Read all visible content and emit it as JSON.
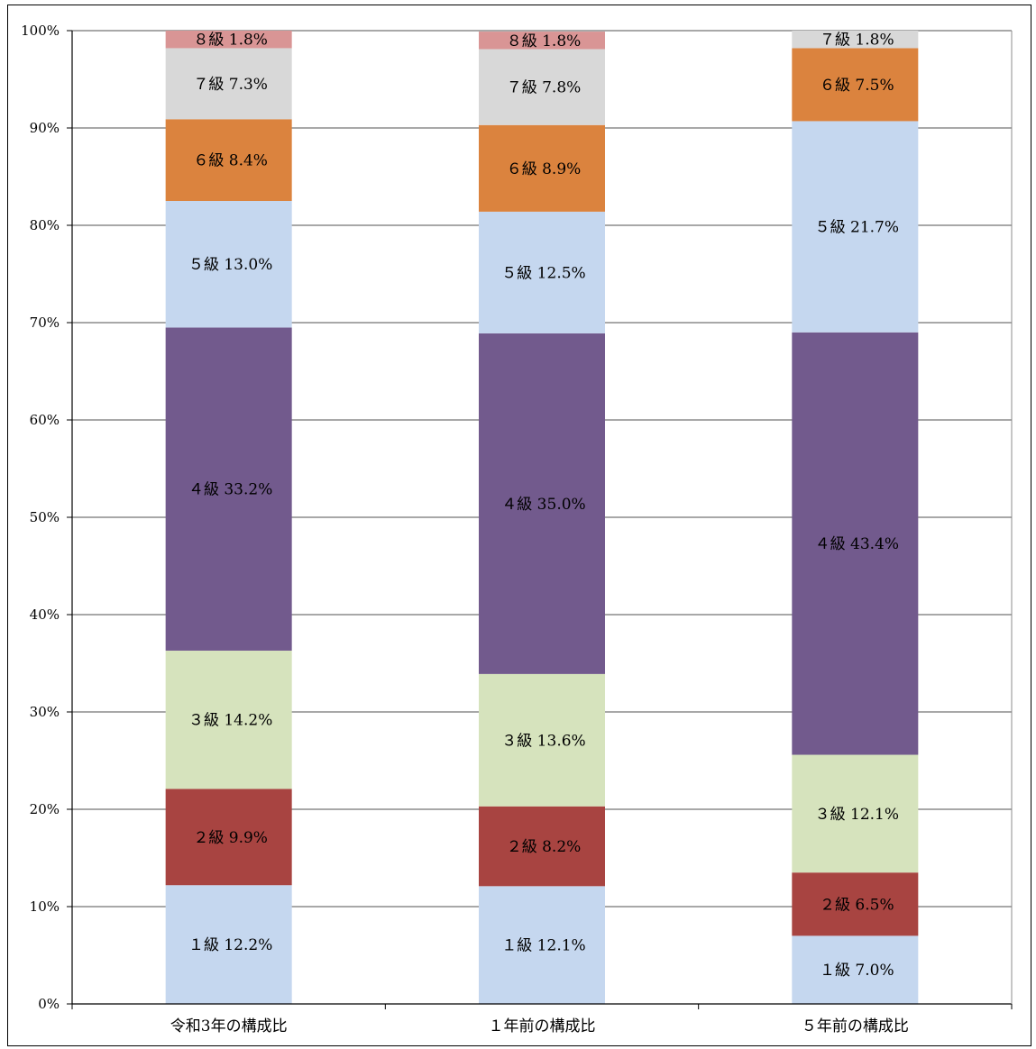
{
  "chart_data": {
    "type": "bar",
    "stacked": true,
    "normalized": true,
    "categories": [
      "令和3年の構成比",
      "１年前の構成比",
      "５年前の構成比"
    ],
    "ylim": [
      0,
      100
    ],
    "yticks": [
      "0%",
      "10%",
      "20%",
      "30%",
      "40%",
      "50%",
      "60%",
      "70%",
      "80%",
      "90%",
      "100%"
    ],
    "grid": true,
    "legend": "none",
    "series": [
      {
        "name": "１級",
        "color": "#c5d7ef",
        "values": [
          12.2,
          12.1,
          7.0
        ],
        "labels": [
          "１級 12.2%",
          "１級 12.1%",
          "１級 7.0%"
        ]
      },
      {
        "name": "２級",
        "color": "#a84441",
        "values": [
          9.9,
          8.2,
          6.5
        ],
        "labels": [
          "２級 9.9%",
          "２級 8.2%",
          "２級 6.5%"
        ]
      },
      {
        "name": "３級",
        "color": "#d6e3bd",
        "values": [
          14.2,
          13.6,
          12.1
        ],
        "labels": [
          "３級 14.2%",
          "３級 13.6%",
          "３級 12.1%"
        ]
      },
      {
        "name": "４級",
        "color": "#725a8d",
        "values": [
          33.2,
          35.0,
          43.4
        ],
        "labels": [
          "４級 33.2%",
          "４級 35.0%",
          "４級 43.4%"
        ]
      },
      {
        "name": "５級",
        "color": "#c5d7ef",
        "values": [
          13.0,
          12.5,
          21.7
        ],
        "labels": [
          "５級 13.0%",
          "５級 12.5%",
          "５級 21.7%"
        ]
      },
      {
        "name": "６級",
        "color": "#db833e",
        "values": [
          8.4,
          8.9,
          7.5
        ],
        "labels": [
          "６級 8.4%",
          "６級 8.9%",
          "６級 7.5%"
        ]
      },
      {
        "name": "７級",
        "color": "#d8d8d8",
        "values": [
          7.3,
          7.8,
          1.8
        ],
        "labels": [
          "７級 7.3%",
          "７級 7.8%",
          "７級 1.8%"
        ]
      },
      {
        "name": "８級",
        "color": "#d99595",
        "values": [
          1.8,
          1.8,
          0
        ],
        "labels": [
          "８級 1.8%",
          "８級 1.8%",
          ""
        ]
      }
    ]
  }
}
